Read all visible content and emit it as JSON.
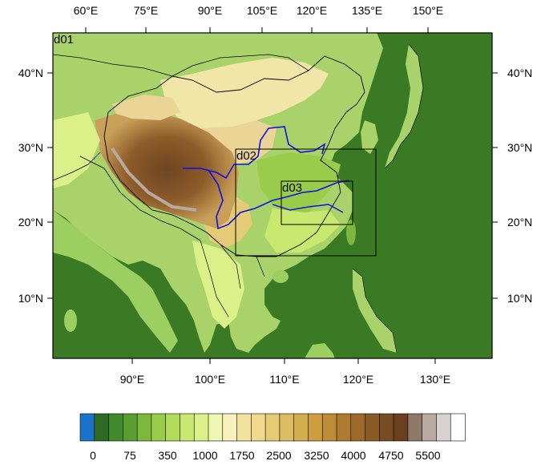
{
  "map": {
    "domains": [
      {
        "id": "d01",
        "label": "d01"
      },
      {
        "id": "d02",
        "label": "d02"
      },
      {
        "id": "d03",
        "label": "d03"
      }
    ],
    "top_lon_ticks": [
      "60°E",
      "75°E",
      "90°E",
      "105°E",
      "120°E",
      "135°E",
      "150°E"
    ],
    "bottom_lon_ticks": [
      "90°E",
      "100°E",
      "110°E",
      "120°E",
      "130°E"
    ],
    "left_lat_ticks": [
      "40°N",
      "30°N",
      "20°N",
      "10°N"
    ],
    "right_lat_ticks": [
      "40°N",
      "30°N",
      "20°N",
      "10°N"
    ],
    "colors": {
      "ocean": "#3a7a24",
      "river": "#1010e0",
      "border": "#000000"
    }
  },
  "colorbar": {
    "labels": [
      "0",
      "75",
      "350",
      "1000",
      "1750",
      "2500",
      "3250",
      "4000",
      "4750",
      "5500"
    ],
    "colors": [
      "#1b72c8",
      "#2e6b22",
      "#3f8a2c",
      "#5a9e32",
      "#7cb83d",
      "#98cc4a",
      "#b3dc5c",
      "#c9e870",
      "#dcf08a",
      "#eef6b0",
      "#f7f0bd",
      "#f2e2a0",
      "#eed98c",
      "#e6cb76",
      "#dcbc62",
      "#d4ad4e",
      "#cc9e3e",
      "#bd8c36",
      "#ae7c30",
      "#9c6a2b",
      "#8a5a26",
      "#784c22",
      "#6a4020",
      "#8e7868",
      "#b8aaa0",
      "#d8d2d2",
      "#ffffff"
    ]
  }
}
